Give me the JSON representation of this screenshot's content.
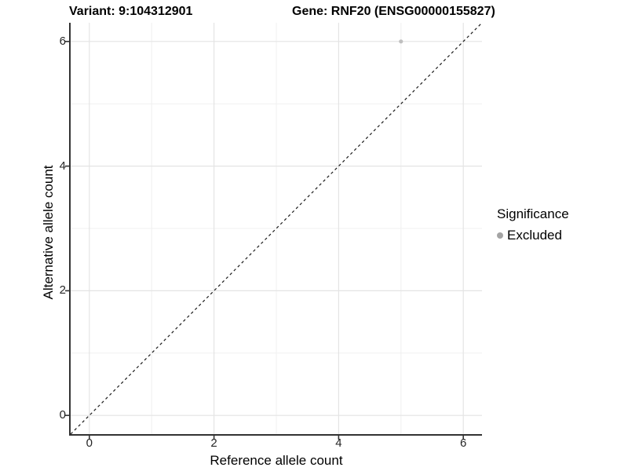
{
  "chart_data": {
    "type": "scatter",
    "title_left": "Variant: 9:104312901",
    "title_right": "Gene: RNF20 (ENSG00000155827)",
    "xlabel": "Reference allele count",
    "ylabel": "Alternative allele count",
    "xlim": [
      -0.3,
      6.3
    ],
    "ylim": [
      -0.3,
      6.3
    ],
    "xticks": [
      0,
      2,
      4,
      6
    ],
    "yticks": [
      0,
      2,
      4,
      6
    ],
    "grid": {
      "major_color": "#e4e4e4",
      "minor_color": "#f0f0f0",
      "minor": "midpoints"
    },
    "axis_color": "#333333",
    "tick_color": "#333333",
    "reference_line": {
      "kind": "abline",
      "slope": 1,
      "intercept": 0,
      "style": "dashed",
      "color": "#1a1a1a"
    },
    "series": [
      {
        "name": "Excluded",
        "color": "#bfbfbf",
        "point_radius": 2.6,
        "points": [
          {
            "x": 5,
            "y": 6
          }
        ]
      }
    ],
    "legend": {
      "title": "Significance",
      "position": "right",
      "entries": [
        {
          "label": "Excluded",
          "swatch_color": "#a4a4a4"
        }
      ]
    }
  }
}
